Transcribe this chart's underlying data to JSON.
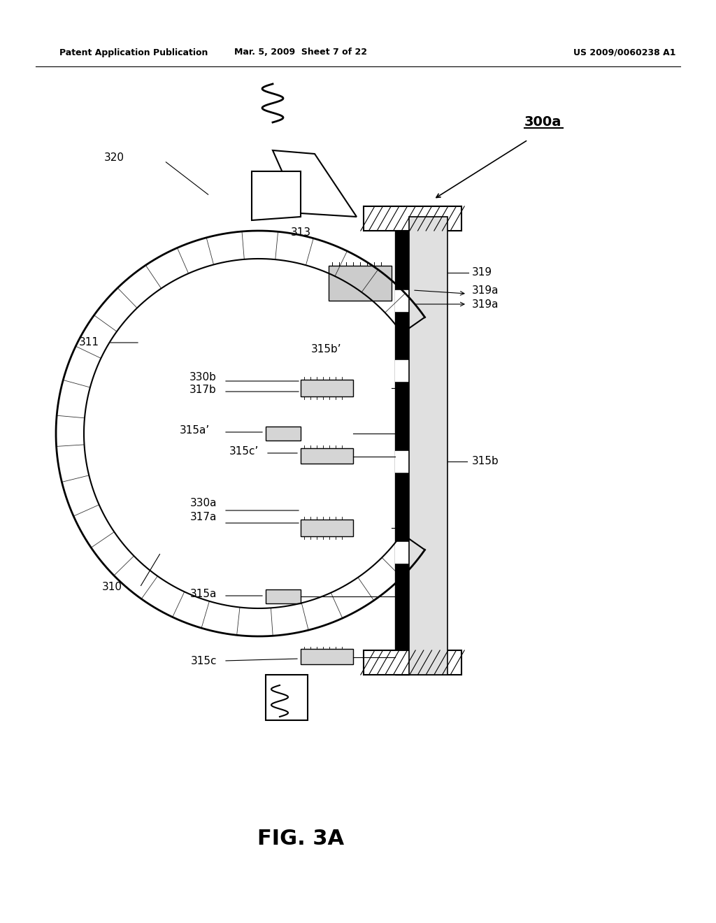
{
  "bg_color": "#ffffff",
  "header_left": "Patent Application Publication",
  "header_mid": "Mar. 5, 2009  Sheet 7 of 22",
  "header_right": "US 2009/0060238 A1",
  "fig_label": "FIG. 3A",
  "ref_300a": "300a",
  "ref_320": "320",
  "ref_311": "311",
  "ref_313": "313",
  "ref_310": "310",
  "ref_315b": "315b",
  "ref_315b_prime": "315b’",
  "ref_315a": "315a",
  "ref_315a_prime": "315a’",
  "ref_315c": "315c",
  "ref_315c_prime": "315c’",
  "ref_317a": "317a",
  "ref_317b": "317b",
  "ref_319": "319",
  "ref_319a_1": "319a",
  "ref_319a_2": "319a",
  "ref_330a": "330a",
  "ref_330b": "330b"
}
